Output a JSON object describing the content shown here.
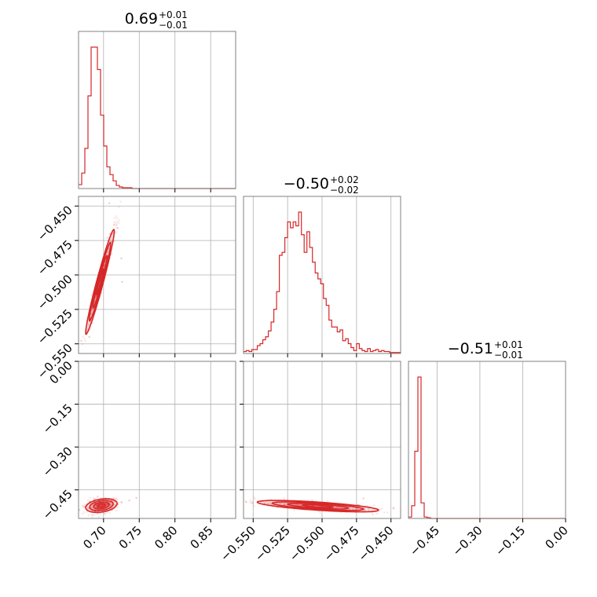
{
  "colors": {
    "accent": "#d62728",
    "grid": "#b0b0b0",
    "frame": "#808080"
  },
  "chart_data": {
    "type": "corner",
    "parameters": [
      {
        "title": {
          "median": "0.69",
          "plus": "+0.01",
          "minus": "−0.01"
        },
        "range": [
          0.665,
          0.885
        ],
        "ticks": [
          0.7,
          0.75,
          0.8,
          0.85
        ],
        "tick_labels": [
          "0.70",
          "0.75",
          "0.80",
          "0.85"
        ],
        "hist": {
          "start": 0.665,
          "bin_width": 0.0044,
          "counts": [
            5,
            20,
            52,
            120,
            183,
            183,
            154,
            95,
            55,
            28,
            18,
            10,
            4,
            2,
            1,
            1,
            1,
            0,
            0,
            0,
            0,
            0,
            0,
            0,
            0,
            0,
            0,
            0,
            0,
            0,
            0,
            0,
            0,
            0,
            0,
            0,
            0,
            0,
            0,
            0,
            0,
            0,
            0,
            0,
            0,
            0,
            0,
            0,
            0,
            0
          ]
        }
      },
      {
        "title": {
          "median": "−0.50",
          "plus": "+0.02",
          "minus": "−0.02"
        },
        "range": [
          -0.557,
          -0.443
        ],
        "ticks": [
          -0.55,
          -0.525,
          -0.5,
          -0.475,
          -0.45
        ],
        "tick_labels": [
          "−0.550",
          "−0.525",
          "−0.500",
          "−0.475",
          "−0.450"
        ],
        "y_tick_labels": [
          "−0.550",
          "−0.525",
          "−0.500",
          "−0.475",
          "−0.450"
        ],
        "hist": {
          "start": -0.557,
          "bin_width": 0.002,
          "counts": [
            2,
            3,
            2,
            4,
            4,
            8,
            10,
            14,
            17,
            23,
            32,
            45,
            63,
            100,
            103,
            118,
            134,
            128,
            134,
            130,
            144,
            121,
            103,
            124,
            108,
            93,
            82,
            76,
            71,
            56,
            49,
            34,
            27,
            27,
            22,
            24,
            13,
            15,
            10,
            6,
            3,
            10,
            5,
            3,
            2,
            5,
            2,
            3,
            4,
            2,
            3,
            2,
            2,
            1,
            1,
            1,
            1
          ]
        }
      },
      {
        "title": {
          "median": "−0.51",
          "plus": "+0.01",
          "minus": "−0.01"
        },
        "range": [
          -0.55,
          0.0
        ],
        "ticks": [
          -0.45,
          -0.3,
          -0.15,
          0.0
        ],
        "tick_labels": [
          "−0.45",
          "−0.30",
          "−0.15",
          "0.00"
        ],
        "y_tick_labels": [
          "−0.45",
          "−0.30",
          "−0.15",
          "0.00"
        ],
        "hist": {
          "start": -0.55,
          "bin_width": 0.011,
          "counts": [
            2,
            18,
            95,
            200,
            22,
            2,
            1,
            0,
            0,
            0,
            0,
            0,
            0,
            0,
            0,
            0,
            0,
            0,
            0,
            0,
            0,
            0,
            0,
            0,
            0,
            0,
            0,
            0,
            0,
            0,
            0,
            0,
            0,
            0,
            0,
            0,
            0,
            0,
            0,
            0,
            0,
            0,
            0,
            0,
            0,
            0,
            0,
            0,
            0,
            0
          ]
        }
      }
    ],
    "pairs": [
      {
        "x_param": 0,
        "y_param": 1,
        "correlation": 0.97,
        "center": [
          0.695,
          -0.505
        ],
        "sigma": [
          0.01,
          0.019
        ],
        "outliers": [
          [
            0.708,
            -0.448
          ],
          [
            0.725,
            -0.488
          ],
          [
            0.72,
            -0.466
          ],
          [
            0.726,
            -0.505
          ],
          [
            0.68,
            -0.545
          ]
        ]
      },
      {
        "x_param": 0,
        "y_param": 2,
        "correlation": 0.3,
        "center": [
          0.697,
          -0.505
        ],
        "sigma": [
          0.011,
          0.012
        ],
        "outliers": [
          [
            0.736,
            -0.487
          ],
          [
            0.746,
            -0.478
          ],
          [
            0.666,
            -0.52
          ]
        ]
      },
      {
        "x_param": 1,
        "y_param": 2,
        "correlation": -0.7,
        "center": [
          -0.503,
          -0.507
        ],
        "sigma": [
          0.022,
          0.01
        ],
        "outliers": [
          [
            -0.47,
            -0.48
          ],
          [
            -0.555,
            -0.493
          ],
          [
            -0.448,
            -0.515
          ]
        ]
      }
    ]
  }
}
